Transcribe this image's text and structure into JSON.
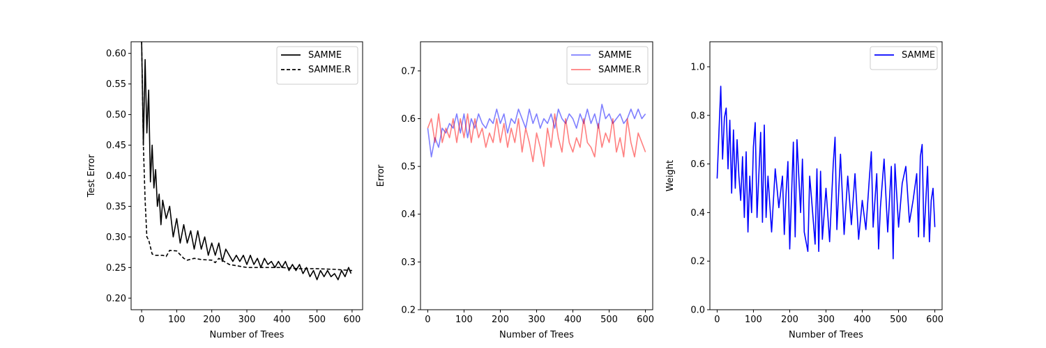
{
  "chart_data": [
    {
      "type": "line",
      "title": "",
      "xlabel": "Number of Trees",
      "ylabel": "Test Error",
      "xlim": [
        -30,
        630
      ],
      "ylim": [
        0.181,
        0.619
      ],
      "xticks": [
        0,
        100,
        200,
        300,
        400,
        500,
        600
      ],
      "yticks": [
        0.2,
        0.25,
        0.3,
        0.35,
        0.4,
        0.45,
        0.5,
        0.55,
        0.6
      ],
      "ytick_decimals": 2,
      "legend_position": "top-right",
      "series": [
        {
          "name": "SAMME",
          "color": "#000000",
          "style": "solid",
          "alpha": 1,
          "x": [
            0,
            5,
            10,
            15,
            20,
            25,
            30,
            35,
            40,
            45,
            50,
            55,
            60,
            70,
            80,
            90,
            100,
            110,
            120,
            130,
            140,
            150,
            160,
            170,
            180,
            190,
            200,
            210,
            220,
            230,
            240,
            250,
            260,
            270,
            280,
            290,
            300,
            310,
            320,
            330,
            340,
            350,
            360,
            370,
            380,
            390,
            400,
            410,
            420,
            430,
            440,
            450,
            460,
            470,
            480,
            490,
            500,
            510,
            520,
            530,
            540,
            550,
            560,
            570,
            580,
            590,
            597
          ],
          "y": [
            0.62,
            0.45,
            0.59,
            0.47,
            0.54,
            0.39,
            0.45,
            0.38,
            0.41,
            0.35,
            0.37,
            0.32,
            0.36,
            0.33,
            0.35,
            0.3,
            0.33,
            0.29,
            0.32,
            0.29,
            0.31,
            0.28,
            0.31,
            0.28,
            0.3,
            0.27,
            0.29,
            0.27,
            0.29,
            0.26,
            0.28,
            0.27,
            0.26,
            0.27,
            0.26,
            0.27,
            0.255,
            0.27,
            0.255,
            0.265,
            0.25,
            0.265,
            0.255,
            0.26,
            0.25,
            0.26,
            0.25,
            0.26,
            0.245,
            0.255,
            0.245,
            0.255,
            0.24,
            0.25,
            0.235,
            0.245,
            0.23,
            0.245,
            0.235,
            0.245,
            0.235,
            0.24,
            0.23,
            0.245,
            0.235,
            0.25,
            0.24
          ]
        },
        {
          "name": "SAMME.R",
          "color": "#000000",
          "style": "dashed",
          "alpha": 1,
          "x": [
            0,
            5,
            10,
            15,
            20,
            30,
            40,
            60,
            70,
            80,
            100,
            120,
            130,
            150,
            170,
            200,
            210,
            220,
            250,
            300,
            350,
            400,
            450,
            500,
            550,
            600
          ],
          "y": [
            0.62,
            0.45,
            0.36,
            0.3,
            0.295,
            0.272,
            0.27,
            0.27,
            0.268,
            0.278,
            0.277,
            0.265,
            0.262,
            0.265,
            0.263,
            0.262,
            0.258,
            0.265,
            0.255,
            0.25,
            0.25,
            0.25,
            0.248,
            0.248,
            0.247,
            0.245
          ]
        }
      ]
    },
    {
      "type": "line",
      "title": "",
      "xlabel": "Number of Trees",
      "ylabel": "Error",
      "xlim": [
        -20,
        620
      ],
      "ylim": [
        0.2,
        0.761
      ],
      "xticks": [
        0,
        100,
        200,
        300,
        400,
        500,
        600
      ],
      "yticks": [
        0.2,
        0.3,
        0.4,
        0.5,
        0.6,
        0.7
      ],
      "ytick_decimals": 1,
      "legend_position": "top-right",
      "series": [
        {
          "name": "SAMME",
          "color": "#0000ff",
          "style": "solid",
          "alpha": 0.5,
          "x": [
            0,
            10,
            20,
            30,
            40,
            50,
            60,
            70,
            80,
            90,
            100,
            110,
            120,
            130,
            140,
            150,
            160,
            170,
            180,
            190,
            200,
            210,
            220,
            230,
            240,
            250,
            260,
            270,
            280,
            290,
            300,
            310,
            320,
            330,
            340,
            350,
            360,
            370,
            380,
            390,
            400,
            410,
            420,
            430,
            440,
            450,
            460,
            470,
            480,
            490,
            500,
            510,
            520,
            530,
            540,
            550,
            560,
            570,
            580,
            590,
            600
          ],
          "y": [
            0.58,
            0.52,
            0.56,
            0.54,
            0.58,
            0.57,
            0.59,
            0.58,
            0.61,
            0.57,
            0.61,
            0.56,
            0.6,
            0.58,
            0.61,
            0.59,
            0.58,
            0.6,
            0.59,
            0.62,
            0.59,
            0.61,
            0.57,
            0.6,
            0.59,
            0.62,
            0.6,
            0.58,
            0.62,
            0.59,
            0.61,
            0.58,
            0.6,
            0.59,
            0.61,
            0.58,
            0.62,
            0.6,
            0.59,
            0.61,
            0.6,
            0.58,
            0.61,
            0.59,
            0.62,
            0.59,
            0.61,
            0.58,
            0.63,
            0.6,
            0.61,
            0.59,
            0.6,
            0.61,
            0.59,
            0.6,
            0.62,
            0.6,
            0.62,
            0.6,
            0.61
          ]
        },
        {
          "name": "SAMME.R",
          "color": "#ff0000",
          "style": "solid",
          "alpha": 0.5,
          "x": [
            0,
            10,
            20,
            30,
            40,
            50,
            60,
            70,
            80,
            90,
            100,
            110,
            120,
            130,
            140,
            150,
            160,
            170,
            180,
            190,
            200,
            210,
            220,
            230,
            240,
            250,
            260,
            270,
            280,
            290,
            300,
            310,
            320,
            330,
            340,
            350,
            360,
            370,
            380,
            390,
            400,
            410,
            420,
            430,
            440,
            450,
            460,
            470,
            480,
            490,
            500,
            510,
            520,
            530,
            540,
            550,
            560,
            570,
            580,
            590,
            600
          ],
          "y": [
            0.58,
            0.6,
            0.55,
            0.61,
            0.55,
            0.58,
            0.56,
            0.6,
            0.55,
            0.6,
            0.56,
            0.61,
            0.55,
            0.6,
            0.56,
            0.58,
            0.54,
            0.57,
            0.55,
            0.6,
            0.55,
            0.59,
            0.54,
            0.58,
            0.55,
            0.6,
            0.53,
            0.58,
            0.55,
            0.51,
            0.57,
            0.54,
            0.5,
            0.58,
            0.54,
            0.61,
            0.56,
            0.53,
            0.6,
            0.55,
            0.53,
            0.56,
            0.54,
            0.6,
            0.55,
            0.54,
            0.52,
            0.59,
            0.54,
            0.57,
            0.55,
            0.6,
            0.53,
            0.56,
            0.52,
            0.6,
            0.55,
            0.52,
            0.57,
            0.55,
            0.53
          ]
        }
      ]
    },
    {
      "type": "line",
      "title": "",
      "xlabel": "Number of Trees",
      "ylabel": "Weight",
      "xlim": [
        -20,
        620
      ],
      "ylim": [
        0.0,
        1.103
      ],
      "xticks": [
        0,
        100,
        200,
        300,
        400,
        500,
        600
      ],
      "yticks": [
        0.0,
        0.2,
        0.4,
        0.6,
        0.8,
        1.0
      ],
      "ytick_decimals": 1,
      "legend_position": "top-right",
      "series": [
        {
          "name": "SAMME",
          "color": "#0000ff",
          "style": "solid",
          "alpha": 1,
          "x": [
            0,
            5,
            10,
            15,
            20,
            25,
            30,
            35,
            40,
            45,
            50,
            55,
            60,
            65,
            70,
            75,
            80,
            85,
            90,
            95,
            100,
            105,
            110,
            120,
            125,
            130,
            135,
            140,
            150,
            160,
            170,
            180,
            185,
            190,
            195,
            200,
            210,
            215,
            220,
            230,
            235,
            240,
            250,
            255,
            260,
            270,
            275,
            280,
            285,
            290,
            300,
            310,
            320,
            325,
            330,
            340,
            350,
            360,
            370,
            380,
            390,
            400,
            410,
            420,
            425,
            430,
            440,
            445,
            450,
            460,
            470,
            480,
            485,
            490,
            500,
            510,
            520,
            530,
            540,
            550,
            555,
            560,
            565,
            570,
            580,
            585,
            590,
            595,
            600
          ],
          "y": [
            0.54,
            0.73,
            0.92,
            0.62,
            0.79,
            0.83,
            0.58,
            0.78,
            0.48,
            0.74,
            0.5,
            0.7,
            0.55,
            0.45,
            0.63,
            0.38,
            0.65,
            0.32,
            0.55,
            0.4,
            0.67,
            0.77,
            0.38,
            0.73,
            0.36,
            0.76,
            0.38,
            0.55,
            0.32,
            0.58,
            0.42,
            0.55,
            0.31,
            0.48,
            0.61,
            0.25,
            0.69,
            0.3,
            0.7,
            0.4,
            0.62,
            0.32,
            0.24,
            0.55,
            0.46,
            0.27,
            0.58,
            0.24,
            0.57,
            0.29,
            0.5,
            0.28,
            0.6,
            0.71,
            0.33,
            0.64,
            0.31,
            0.55,
            0.35,
            0.56,
            0.29,
            0.45,
            0.33,
            0.55,
            0.65,
            0.34,
            0.56,
            0.25,
            0.42,
            0.62,
            0.32,
            0.59,
            0.21,
            0.6,
            0.34,
            0.52,
            0.59,
            0.36,
            0.45,
            0.56,
            0.3,
            0.63,
            0.68,
            0.3,
            0.59,
            0.28,
            0.45,
            0.5,
            0.34
          ]
        }
      ]
    }
  ]
}
